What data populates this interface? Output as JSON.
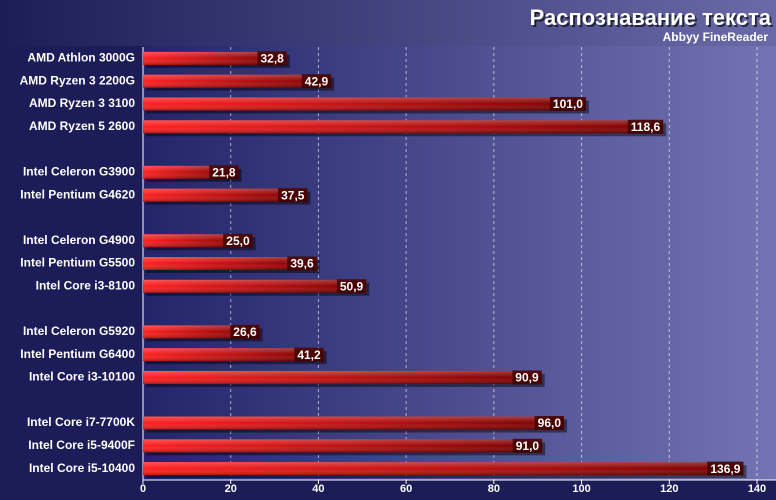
{
  "chart_data": {
    "type": "bar",
    "orientation": "horizontal",
    "title": "Распознавание текста",
    "subtitle": "Abbyy FineReader",
    "categories": [
      "AMD Athlon 3000G",
      "AMD Ryzen 3 2200G",
      "AMD Ryzen 3 3100",
      "AMD Ryzen 5 2600",
      null,
      "Intel Celeron G3900",
      "Intel Pentium G4620",
      null,
      "Intel Celeron G4900",
      "Intel Pentium G5500",
      "Intel Core i3-8100",
      null,
      "Intel Celeron G5920",
      "Intel Pentium G6400",
      "Intel Core i3-10100",
      null,
      "Intel Core i7-7700K",
      "Intel Core i5-9400F",
      "Intel Core i5-10400"
    ],
    "values": [
      32.8,
      42.9,
      101.0,
      118.6,
      null,
      21.8,
      37.5,
      null,
      25.0,
      39.6,
      50.9,
      null,
      26.6,
      41.2,
      90.9,
      null,
      96.0,
      91.0,
      136.9
    ],
    "value_labels": [
      "32,8",
      "42,9",
      "101,0",
      "118,6",
      null,
      "21,8",
      "37,5",
      null,
      "25,0",
      "39,6",
      "50,9",
      null,
      "26,6",
      "41,2",
      "90,9",
      null,
      "96,0",
      "91,0",
      "136,9"
    ],
    "color": "#ff1010",
    "xlim": [
      0,
      140
    ],
    "xticks": [
      0,
      20,
      40,
      60,
      80,
      100,
      120,
      140
    ],
    "grid": true
  }
}
